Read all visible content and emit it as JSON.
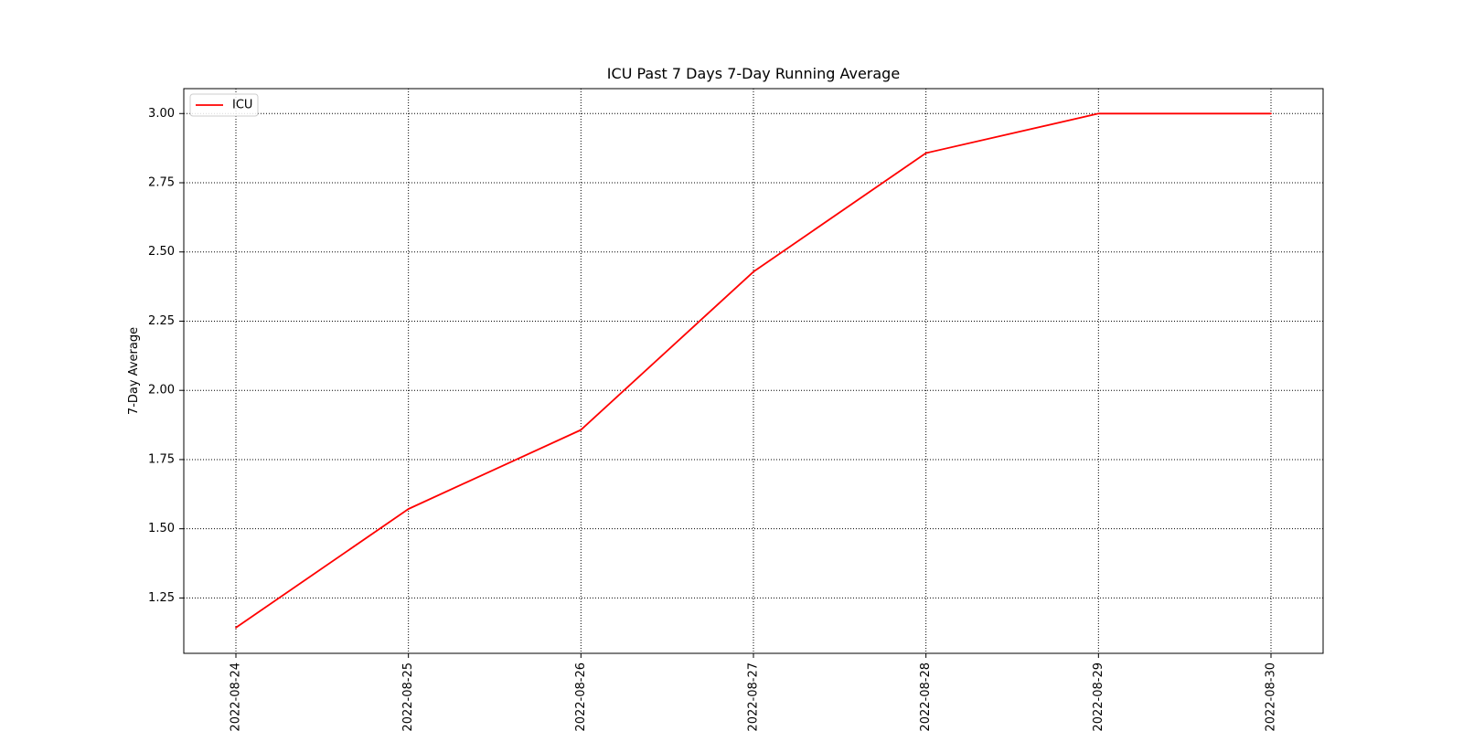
{
  "chart_data": {
    "type": "line",
    "title": "ICU Past 7 Days 7-Day Running Average",
    "xlabel": "",
    "ylabel": "7-Day Average",
    "x": [
      "2022-08-24",
      "2022-08-25",
      "2022-08-26",
      "2022-08-27",
      "2022-08-28",
      "2022-08-29",
      "2022-08-30"
    ],
    "series": [
      {
        "name": "ICU",
        "color": "#ff0000",
        "values": [
          1.142857,
          1.571429,
          1.857143,
          2.428571,
          2.857143,
          3.0,
          3.0
        ]
      }
    ],
    "ylim": [
      1.05,
      3.09
    ],
    "yticks": [
      1.25,
      1.5,
      1.75,
      2.0,
      2.25,
      2.5,
      2.75,
      3.0
    ],
    "ytick_labels": [
      "1.25",
      "1.50",
      "1.75",
      "2.00",
      "2.25",
      "2.50",
      "2.75",
      "3.00"
    ],
    "grid": true,
    "grid_style": "dotted",
    "legend_location": "upper left"
  }
}
